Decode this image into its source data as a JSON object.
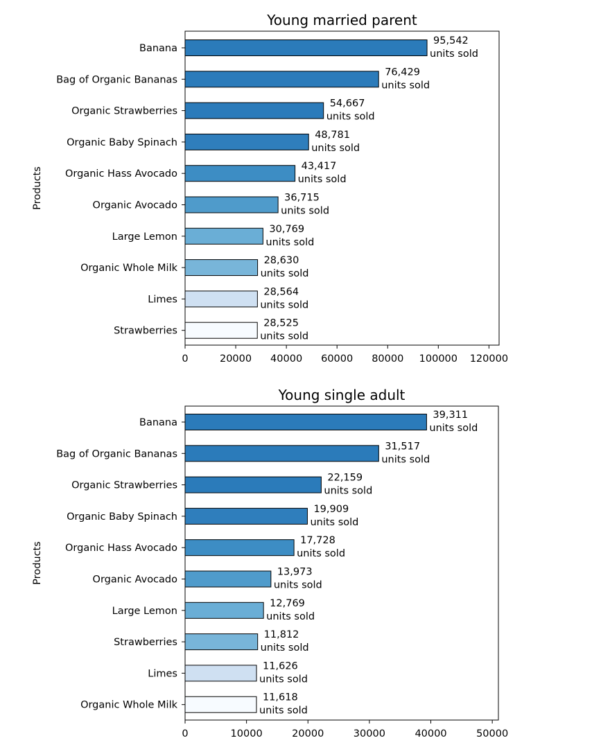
{
  "chart_data": [
    {
      "type": "bar",
      "orientation": "horizontal",
      "title": "Young married parent",
      "ylabel": "Products",
      "xlabel": "",
      "categories": [
        "Banana",
        "Bag of Organic Bananas",
        "Organic Strawberries",
        "Organic Baby Spinach",
        "Organic Hass Avocado",
        "Organic Avocado",
        "Large Lemon",
        "Organic Whole Milk",
        "Limes",
        "Strawberries"
      ],
      "values": [
        95542,
        76429,
        54667,
        48781,
        43417,
        36715,
        30769,
        28630,
        28564,
        28525
      ],
      "value_labels": [
        "95,542",
        "76,429",
        "54,667",
        "48,781",
        "43,417",
        "36,715",
        "30,769",
        "28,630",
        "28,564",
        "28,525"
      ],
      "label_suffix": "units sold",
      "colors": [
        "#2b7bba",
        "#2b7bba",
        "#2b7bba",
        "#2f7ebc",
        "#3d8dc4",
        "#4f9bcb",
        "#6aaed6",
        "#78b5d9",
        "#cfe0f2",
        "#f7fbff"
      ],
      "xlim": [
        0,
        124000
      ],
      "xticks": [
        0,
        20000,
        40000,
        60000,
        80000,
        100000,
        120000
      ],
      "grid": false
    },
    {
      "type": "bar",
      "orientation": "horizontal",
      "title": "Young single adult",
      "ylabel": "Products",
      "xlabel": "",
      "categories": [
        "Banana",
        "Bag of Organic Bananas",
        "Organic Strawberries",
        "Organic Baby Spinach",
        "Organic Hass Avocado",
        "Organic Avocado",
        "Large Lemon",
        "Strawberries",
        "Limes",
        "Organic Whole Milk"
      ],
      "values": [
        39311,
        31517,
        22159,
        19909,
        17728,
        13973,
        12769,
        11812,
        11626,
        11618
      ],
      "value_labels": [
        "39,311",
        "31,517",
        "22,159",
        "19,909",
        "17,728",
        "13,973",
        "12,769",
        "11,812",
        "11,626",
        "11,618"
      ],
      "label_suffix": "units sold",
      "colors": [
        "#2b7bba",
        "#2b7bba",
        "#2b7bba",
        "#2f7ebc",
        "#3d8dc4",
        "#4f9bcb",
        "#6aaed6",
        "#78b5d9",
        "#cfe0f2",
        "#f7fbff"
      ],
      "xlim": [
        0,
        51000
      ],
      "xticks": [
        0,
        10000,
        20000,
        30000,
        40000,
        50000
      ],
      "grid": false
    }
  ]
}
